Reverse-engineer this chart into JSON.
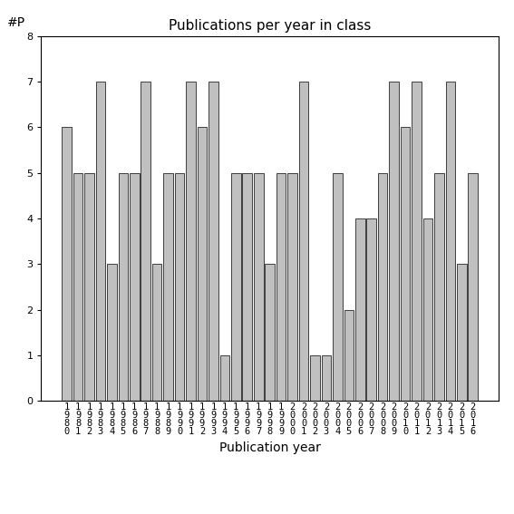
{
  "title": "Publications per year in class",
  "xlabel": "Publication year",
  "ylabel": "#P",
  "years": [
    1980,
    1981,
    1982,
    1983,
    1984,
    1985,
    1986,
    1987,
    1988,
    1989,
    1990,
    1991,
    1992,
    1993,
    1994,
    1995,
    1996,
    1997,
    1998,
    1999,
    2000,
    2001,
    2002,
    2003,
    2004,
    2005,
    2006,
    2007,
    2008,
    2009,
    2010,
    2011,
    2012,
    2013,
    2014,
    2015,
    2016
  ],
  "values": [
    6,
    5,
    5,
    7,
    3,
    5,
    5,
    7,
    3,
    5,
    5,
    7,
    6,
    7,
    1,
    5,
    5,
    5,
    3,
    5,
    5,
    7,
    1,
    1,
    5,
    2,
    4,
    4,
    5,
    7,
    6,
    7,
    4,
    5,
    7,
    3,
    5
  ],
  "bar_color": "#c0c0c0",
  "bar_edgecolor": "#000000",
  "ylim_max": 8,
  "yticks": [
    0,
    1,
    2,
    3,
    4,
    5,
    6,
    7,
    8
  ],
  "figsize": [
    5.67,
    5.67
  ],
  "dpi": 100,
  "title_fontsize": 11,
  "label_fontsize": 10,
  "tick_fontsize": 7.5
}
